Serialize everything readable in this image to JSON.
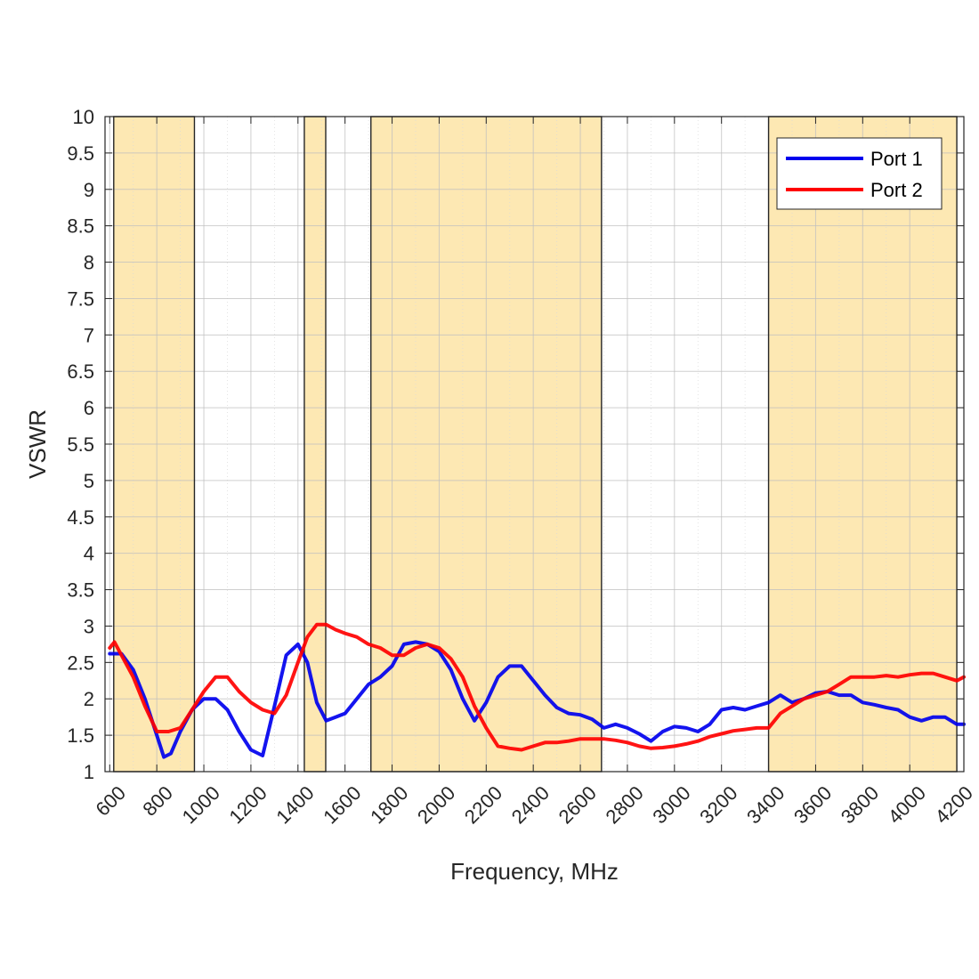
{
  "chart_data": {
    "type": "line",
    "title": "",
    "xlabel": "Frequency, MHz",
    "ylabel": "VSWR",
    "xlim": [
      580,
      4230
    ],
    "ylim": [
      1,
      10
    ],
    "x_ticks": [
      600,
      800,
      1000,
      1200,
      1400,
      1600,
      1800,
      2000,
      2200,
      2400,
      2600,
      2800,
      3000,
      3200,
      3400,
      3600,
      3800,
      4000,
      4200
    ],
    "x_tick_labels": [
      "600",
      "800",
      "1000",
      "1200",
      "1400",
      "1600",
      "1800",
      "2000",
      "2200",
      "2400",
      "2600",
      "2800",
      "3000",
      "3200",
      "3400",
      "3600",
      "3800",
      "4000",
      "4200"
    ],
    "y_ticks": [
      1,
      1.5,
      2,
      2.5,
      3,
      3.5,
      4,
      4.5,
      5,
      5.5,
      6,
      6.5,
      7,
      7.5,
      8,
      8.5,
      9,
      9.5,
      10
    ],
    "y_tick_labels": [
      "1",
      "1.5",
      "2",
      "2.5",
      "3",
      "3.5",
      "4",
      "4.5",
      "5",
      "5.5",
      "6",
      "6.5",
      "7",
      "7.5",
      "8",
      "8.5",
      "9",
      "9.5",
      "10"
    ],
    "grid": true,
    "legend_position": "top-right",
    "bands": [
      {
        "x_start": 617,
        "x_end": 960
      },
      {
        "x_start": 1427,
        "x_end": 1518
      },
      {
        "x_start": 1710,
        "x_end": 2690
      },
      {
        "x_start": 3400,
        "x_end": 4200
      }
    ],
    "band_color": "#fde8b3",
    "series": [
      {
        "name": "Port 1",
        "color": "#0000ee",
        "x": [
          600,
          650,
          700,
          750,
          800,
          830,
          860,
          900,
          950,
          1000,
          1050,
          1100,
          1150,
          1200,
          1250,
          1300,
          1350,
          1400,
          1440,
          1480,
          1520,
          1560,
          1600,
          1650,
          1700,
          1750,
          1800,
          1850,
          1900,
          1950,
          2000,
          2050,
          2100,
          2150,
          2200,
          2250,
          2300,
          2350,
          2400,
          2450,
          2500,
          2550,
          2600,
          2650,
          2700,
          2750,
          2800,
          2850,
          2900,
          2950,
          3000,
          3050,
          3100,
          3150,
          3200,
          3250,
          3300,
          3350,
          3400,
          3450,
          3500,
          3550,
          3600,
          3650,
          3700,
          3750,
          3800,
          3850,
          3900,
          3950,
          4000,
          4050,
          4100,
          4150,
          4200,
          4230
        ],
        "y": [
          2.62,
          2.62,
          2.4,
          2.0,
          1.5,
          1.2,
          1.25,
          1.55,
          1.85,
          2.0,
          2.0,
          1.85,
          1.55,
          1.3,
          1.22,
          1.9,
          2.6,
          2.75,
          2.5,
          1.95,
          1.7,
          1.75,
          1.8,
          2.0,
          2.2,
          2.3,
          2.45,
          2.75,
          2.78,
          2.75,
          2.65,
          2.4,
          2.0,
          1.7,
          1.95,
          2.3,
          2.45,
          2.45,
          2.25,
          2.05,
          1.88,
          1.8,
          1.78,
          1.72,
          1.6,
          1.65,
          1.6,
          1.52,
          1.42,
          1.55,
          1.62,
          1.6,
          1.55,
          1.65,
          1.85,
          1.88,
          1.85,
          1.9,
          1.95,
          2.05,
          1.95,
          2.0,
          2.08,
          2.1,
          2.05,
          2.05,
          1.95,
          1.92,
          1.88,
          1.85,
          1.75,
          1.7,
          1.75,
          1.75,
          1.65,
          1.65
        ]
      },
      {
        "name": "Port 2",
        "color": "#ff0000",
        "x": [
          600,
          620,
          650,
          700,
          750,
          800,
          850,
          900,
          950,
          1000,
          1050,
          1100,
          1150,
          1200,
          1250,
          1300,
          1350,
          1400,
          1440,
          1480,
          1520,
          1560,
          1600,
          1650,
          1700,
          1750,
          1800,
          1850,
          1900,
          1950,
          2000,
          2050,
          2100,
          2150,
          2200,
          2250,
          2300,
          2350,
          2400,
          2450,
          2500,
          2550,
          2600,
          2650,
          2700,
          2750,
          2800,
          2850,
          2900,
          2950,
          3000,
          3050,
          3100,
          3150,
          3200,
          3250,
          3300,
          3350,
          3400,
          3450,
          3500,
          3550,
          3600,
          3650,
          3700,
          3750,
          3800,
          3850,
          3900,
          3950,
          4000,
          4050,
          4100,
          4150,
          4200,
          4230
        ],
        "y": [
          2.7,
          2.78,
          2.6,
          2.3,
          1.9,
          1.55,
          1.55,
          1.6,
          1.85,
          2.1,
          2.3,
          2.3,
          2.1,
          1.95,
          1.85,
          1.8,
          2.05,
          2.5,
          2.85,
          3.02,
          3.02,
          2.95,
          2.9,
          2.85,
          2.75,
          2.7,
          2.6,
          2.6,
          2.7,
          2.75,
          2.7,
          2.55,
          2.3,
          1.9,
          1.6,
          1.35,
          1.32,
          1.3,
          1.35,
          1.4,
          1.4,
          1.42,
          1.45,
          1.45,
          1.45,
          1.43,
          1.4,
          1.35,
          1.32,
          1.33,
          1.35,
          1.38,
          1.42,
          1.48,
          1.52,
          1.56,
          1.58,
          1.6,
          1.6,
          1.8,
          1.9,
          2.0,
          2.05,
          2.1,
          2.2,
          2.3,
          2.3,
          2.3,
          2.32,
          2.3,
          2.33,
          2.35,
          2.35,
          2.3,
          2.25,
          2.3
        ]
      }
    ]
  }
}
